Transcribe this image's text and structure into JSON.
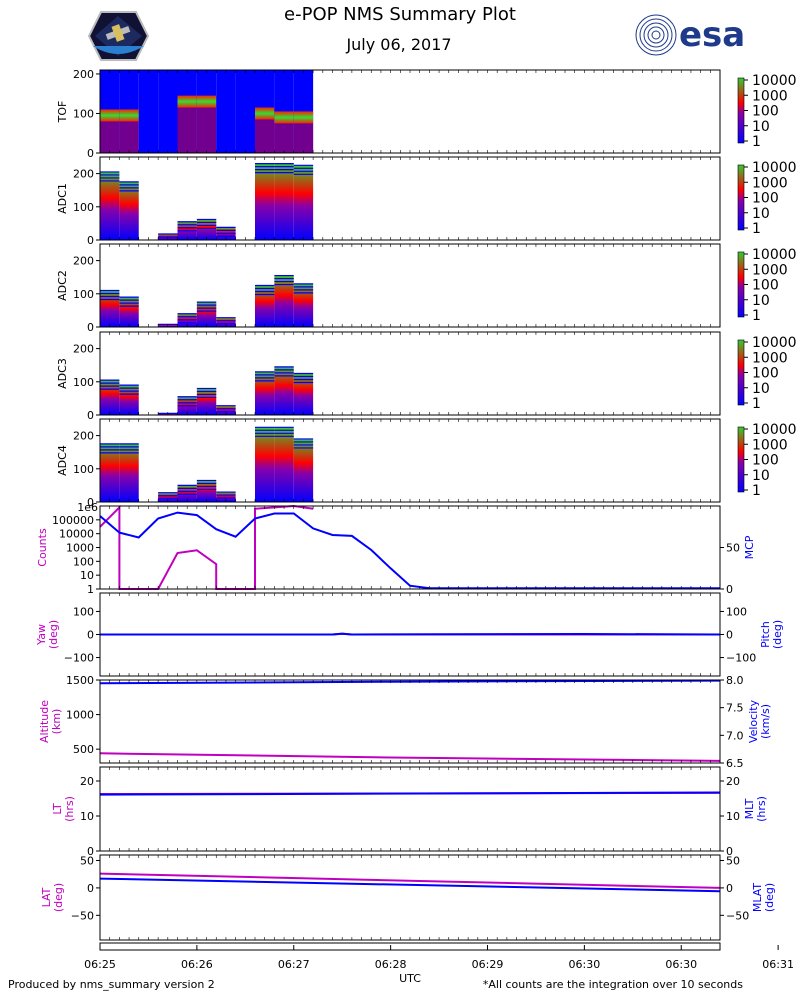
{
  "header": {
    "title": "e-POP NMS Summary Plot",
    "date": "July 06, 2017",
    "esa_logo_text": "esa",
    "mission_logo_icon": "epop-mission-patch-icon",
    "agency_logo_icon": "esa-logo-icon"
  },
  "footer": {
    "left": "Produced by nms_summary version 2",
    "right": "*All counts are the integration over 10 seconds"
  },
  "colors": {
    "blue": "#0000ff",
    "magenta": "#c000c0",
    "red": "#ff0000",
    "green": "#33cc33"
  },
  "chart_data": {
    "type": "panels",
    "xaxis": {
      "label": "UTC",
      "ticks": [
        "06:25",
        "06:26",
        "06:27",
        "06:28",
        "06:29",
        "06:30",
        "06:30",
        "06:31"
      ],
      "range_min": [
        25.0,
        31.4
      ]
    },
    "spectrograms": [
      {
        "ylabel": "TOF",
        "yticks": [
          "0",
          "100",
          "200"
        ],
        "ymax": 210,
        "colorbar_ticks": [
          "10000",
          "1000",
          "100",
          "10",
          "1"
        ],
        "blocks": [
          {
            "t0": 25.0,
            "t1": 25.2,
            "top": 210,
            "band": 95,
            "fill": "full"
          },
          {
            "t0": 25.2,
            "t1": 25.4,
            "top": 210,
            "band": 95,
            "fill": "full"
          },
          {
            "t0": 25.4,
            "t1": 25.6,
            "top": 210,
            "band": 0,
            "fill": "full"
          },
          {
            "t0": 25.6,
            "t1": 25.8,
            "top": 210,
            "band": 0,
            "fill": "full"
          },
          {
            "t0": 25.8,
            "t1": 26.0,
            "top": 210,
            "band": 130,
            "fill": "full"
          },
          {
            "t0": 26.0,
            "t1": 26.2,
            "top": 210,
            "band": 130,
            "fill": "full"
          },
          {
            "t0": 26.2,
            "t1": 26.4,
            "top": 210,
            "band": 0,
            "fill": "full"
          },
          {
            "t0": 26.4,
            "t1": 26.6,
            "top": 210,
            "band": 0,
            "fill": "full"
          },
          {
            "t0": 26.6,
            "t1": 26.8,
            "top": 210,
            "band": 100,
            "fill": "full"
          },
          {
            "t0": 26.8,
            "t1": 27.0,
            "top": 210,
            "band": 90,
            "fill": "full"
          },
          {
            "t0": 27.0,
            "t1": 27.2,
            "top": 210,
            "band": 90,
            "fill": "full"
          }
        ]
      },
      {
        "ylabel": "ADC1",
        "yticks": [
          "0",
          "100",
          "200"
        ],
        "ymax": 250,
        "colorbar_ticks": [
          "10000",
          "1000",
          "100",
          "10",
          "1"
        ],
        "blocks": [
          {
            "t0": 25.0,
            "t1": 25.2,
            "top": 205
          },
          {
            "t0": 25.2,
            "t1": 25.4,
            "top": 175
          },
          {
            "t0": 25.6,
            "t1": 25.8,
            "top": 18
          },
          {
            "t0": 25.8,
            "t1": 26.0,
            "top": 55
          },
          {
            "t0": 26.0,
            "t1": 26.2,
            "top": 62
          },
          {
            "t0": 26.2,
            "t1": 26.4,
            "top": 38
          },
          {
            "t0": 26.6,
            "t1": 26.8,
            "top": 230
          },
          {
            "t0": 26.8,
            "t1": 27.0,
            "top": 230
          },
          {
            "t0": 27.0,
            "t1": 27.2,
            "top": 225
          }
        ]
      },
      {
        "ylabel": "ADC2",
        "yticks": [
          "0",
          "100",
          "200"
        ],
        "ymax": 250,
        "colorbar_ticks": [
          "10000",
          "1000",
          "100",
          "10",
          "1"
        ],
        "blocks": [
          {
            "t0": 25.0,
            "t1": 25.2,
            "top": 110
          },
          {
            "t0": 25.2,
            "t1": 25.4,
            "top": 90
          },
          {
            "t0": 25.6,
            "t1": 25.8,
            "top": 8
          },
          {
            "t0": 25.8,
            "t1": 26.0,
            "top": 40
          },
          {
            "t0": 26.0,
            "t1": 26.2,
            "top": 75
          },
          {
            "t0": 26.2,
            "t1": 26.4,
            "top": 28
          },
          {
            "t0": 26.6,
            "t1": 26.8,
            "top": 125
          },
          {
            "t0": 26.8,
            "t1": 27.0,
            "top": 155
          },
          {
            "t0": 27.0,
            "t1": 27.2,
            "top": 130
          }
        ]
      },
      {
        "ylabel": "ADC3",
        "yticks": [
          "0",
          "100",
          "200"
        ],
        "ymax": 250,
        "colorbar_ticks": [
          "10000",
          "1000",
          "100",
          "10",
          "1"
        ],
        "blocks": [
          {
            "t0": 25.0,
            "t1": 25.2,
            "top": 105
          },
          {
            "t0": 25.2,
            "t1": 25.4,
            "top": 90
          },
          {
            "t0": 25.6,
            "t1": 25.8,
            "top": 5
          },
          {
            "t0": 25.8,
            "t1": 26.0,
            "top": 55
          },
          {
            "t0": 26.0,
            "t1": 26.2,
            "top": 80
          },
          {
            "t0": 26.2,
            "t1": 26.4,
            "top": 28
          },
          {
            "t0": 26.6,
            "t1": 26.8,
            "top": 130
          },
          {
            "t0": 26.8,
            "t1": 27.0,
            "top": 145
          },
          {
            "t0": 27.0,
            "t1": 27.2,
            "top": 125
          }
        ]
      },
      {
        "ylabel": "ADC4",
        "yticks": [
          "0",
          "100",
          "200"
        ],
        "ymax": 250,
        "colorbar_ticks": [
          "10000",
          "1000",
          "100",
          "10",
          "1"
        ],
        "blocks": [
          {
            "t0": 25.0,
            "t1": 25.2,
            "top": 175
          },
          {
            "t0": 25.2,
            "t1": 25.4,
            "top": 175
          },
          {
            "t0": 25.6,
            "t1": 25.8,
            "top": 28
          },
          {
            "t0": 25.8,
            "t1": 26.0,
            "top": 50
          },
          {
            "t0": 26.0,
            "t1": 26.2,
            "top": 65
          },
          {
            "t0": 26.2,
            "t1": 26.4,
            "top": 30
          },
          {
            "t0": 26.6,
            "t1": 26.8,
            "top": 225
          },
          {
            "t0": 26.8,
            "t1": 27.0,
            "top": 225
          },
          {
            "t0": 27.0,
            "t1": 27.2,
            "top": 190
          }
        ]
      }
    ],
    "counts_panel": {
      "left_label": "Counts",
      "right_label": "MCP",
      "left_ticks": [
        "1",
        "10",
        "100",
        "1000",
        "10000",
        "100000"
      ],
      "corner_label": "1e6",
      "right_ticks": [
        "0",
        "50"
      ],
      "counts_log": [
        [
          25.0,
          4.5
        ],
        [
          25.2,
          5.9
        ],
        [
          25.2,
          0.0
        ],
        [
          25.6,
          0.0
        ],
        [
          25.8,
          2.6
        ],
        [
          26.0,
          2.8
        ],
        [
          26.2,
          1.8
        ],
        [
          26.2,
          0.0
        ],
        [
          26.6,
          0.0
        ],
        [
          26.6,
          5.8
        ],
        [
          27.0,
          6.0
        ],
        [
          27.2,
          5.8
        ]
      ],
      "mcp": [
        [
          25.0,
          88
        ],
        [
          25.2,
          68
        ],
        [
          25.4,
          62
        ],
        [
          25.6,
          85
        ],
        [
          25.8,
          92
        ],
        [
          26.0,
          89
        ],
        [
          26.2,
          72
        ],
        [
          26.4,
          63
        ],
        [
          26.6,
          85
        ],
        [
          26.8,
          91
        ],
        [
          27.0,
          91
        ],
        [
          27.2,
          73
        ],
        [
          27.4,
          65
        ],
        [
          27.6,
          64
        ],
        [
          27.8,
          47
        ],
        [
          28.0,
          25
        ],
        [
          28.2,
          4
        ],
        [
          28.4,
          1
        ],
        [
          31.4,
          1
        ]
      ],
      "mcp_max": 100
    },
    "attitude_panel": {
      "left_label": "Yaw\n(deg)",
      "right_label": "Pitch\n(deg)",
      "ticks": [
        "100",
        "0",
        "−100"
      ],
      "yaw": [
        [
          25.0,
          0
        ],
        [
          27.4,
          0
        ],
        [
          27.5,
          4
        ],
        [
          27.6,
          0
        ],
        [
          31.4,
          0
        ]
      ],
      "pitch": [
        [
          25.0,
          0
        ],
        [
          27.4,
          0
        ],
        [
          27.5,
          3
        ],
        [
          27.6,
          0
        ],
        [
          28.5,
          1
        ],
        [
          30.0,
          2
        ],
        [
          31.4,
          0
        ]
      ],
      "range": [
        -180,
        180
      ]
    },
    "altitude_panel": {
      "left_label": "Altitude\n(km)",
      "right_label": "Velocity\n(km/s)",
      "left_ticks": [
        "500",
        "1000",
        "1500"
      ],
      "right_ticks": [
        "6.5",
        "7.0",
        "7.5",
        "8.0"
      ],
      "altitude": [
        [
          25.0,
          440
        ],
        [
          28.0,
          380
        ],
        [
          31.4,
          330
        ]
      ],
      "altitude_range": [
        300,
        1500
      ],
      "velocity": [
        [
          25.0,
          7.94
        ],
        [
          28.0,
          7.97
        ],
        [
          31.4,
          7.99
        ]
      ],
      "velocity_range": [
        6.5,
        8.0
      ]
    },
    "time_panel": {
      "left_label": "LT\n(hrs)",
      "right_label": "MLT\n(hrs)",
      "left_ticks": [
        "0",
        "10",
        "20"
      ],
      "right_ticks": [
        "0",
        "10",
        "20"
      ],
      "lt": [
        [
          25.0,
          16.3
        ],
        [
          31.4,
          16.6
        ]
      ],
      "mlt": [
        [
          25.0,
          16.1
        ],
        [
          31.4,
          16.7
        ]
      ],
      "range": [
        0,
        24
      ]
    },
    "lat_panel": {
      "left_label": "LAT\n(deg)",
      "right_label": "MLAT\n(deg)",
      "left_ticks": [
        "50",
        "0",
        "−50"
      ],
      "right_ticks": [
        "50",
        "0",
        "−50"
      ],
      "lat": [
        [
          25.0,
          26
        ],
        [
          31.4,
          0
        ]
      ],
      "mlat": [
        [
          25.0,
          17
        ],
        [
          31.4,
          -6
        ]
      ],
      "range": [
        -95,
        60
      ]
    }
  }
}
